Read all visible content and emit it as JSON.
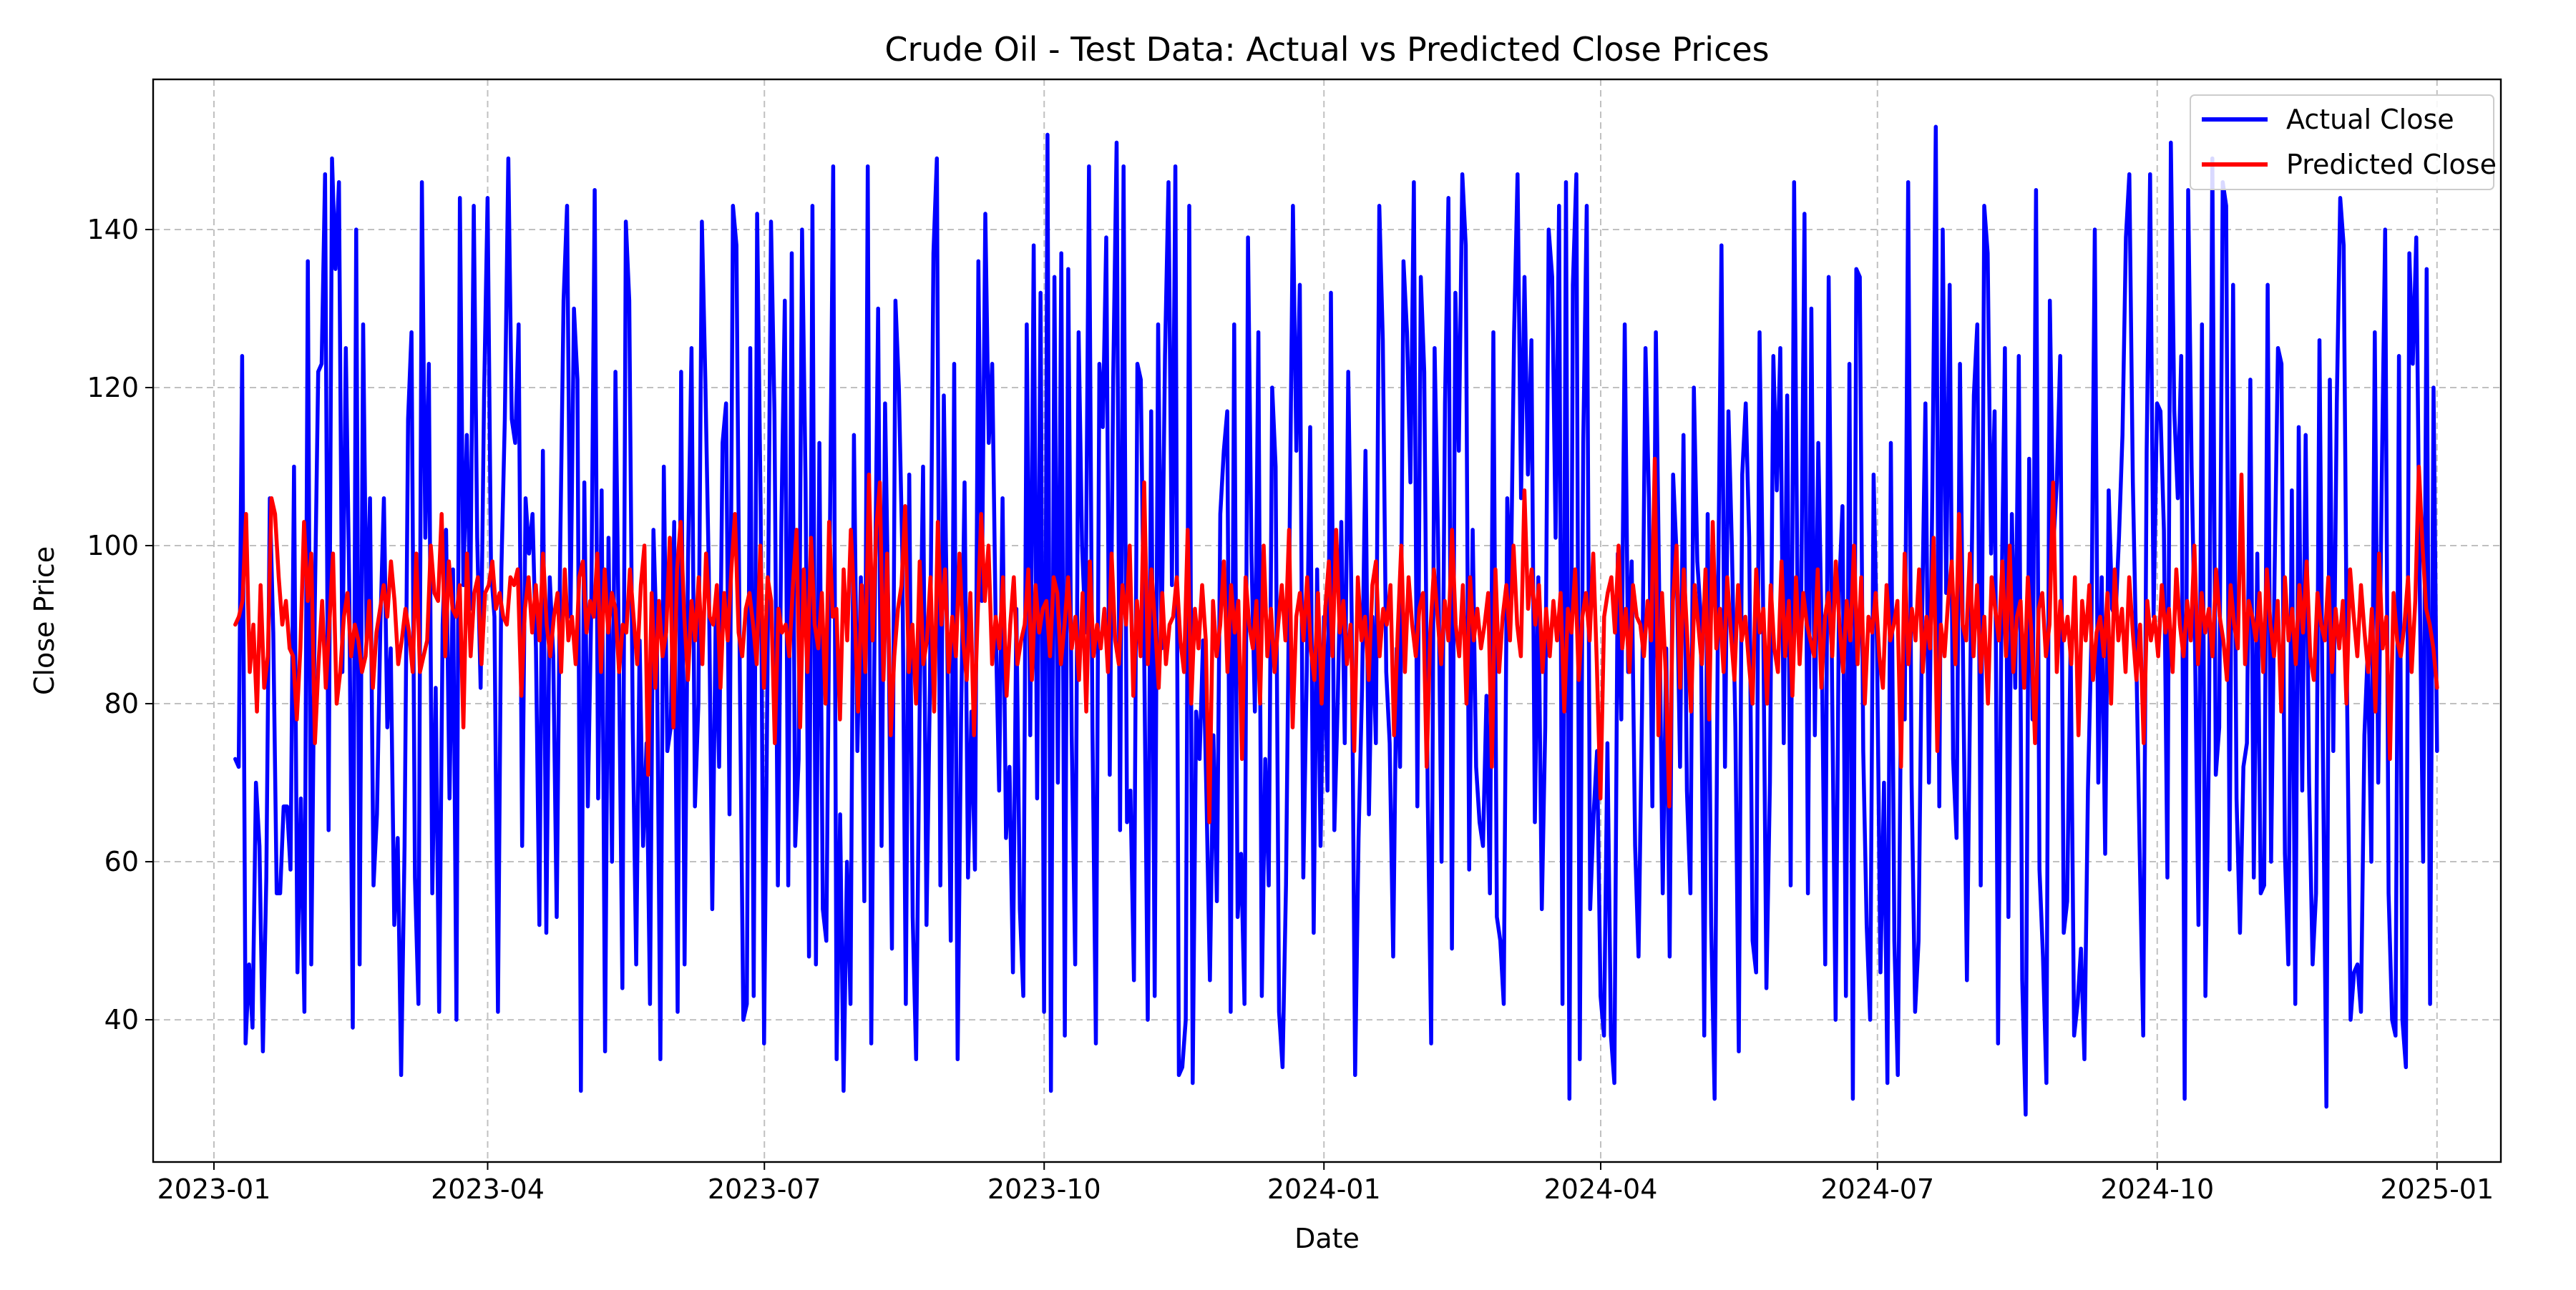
{
  "chart_data": {
    "type": "line",
    "title": "Crude Oil - Test Data: Actual vs Predicted Close Prices",
    "xlabel": "Date",
    "ylabel": "Close Price",
    "x_range": [
      "2022-12-12",
      "2025-01-22"
    ],
    "ylim": [
      22,
      159
    ],
    "x_ticks": [
      "2023-01",
      "2023-04",
      "2023-07",
      "2023-10",
      "2024-01",
      "2024-04",
      "2024-07",
      "2024-10",
      "2025-01"
    ],
    "x_tick_dates": [
      "2023-01-01",
      "2023-04-01",
      "2023-07-01",
      "2023-10-01",
      "2024-01-01",
      "2024-04-01",
      "2024-07-01",
      "2024-10-01",
      "2025-01-01"
    ],
    "y_ticks": [
      40,
      60,
      80,
      100,
      120,
      140
    ],
    "grid": true,
    "legend_position": "top-right",
    "x_start": "2023-01-08",
    "x_end": "2025-01-01",
    "series": [
      {
        "name": "Actual Close",
        "color": "#0000ff",
        "values": [
          73,
          72,
          124,
          37,
          47,
          39,
          70,
          62,
          36,
          58,
          106,
          89,
          56,
          56,
          67,
          67,
          59,
          110,
          46,
          68,
          41,
          136,
          47,
          92,
          122,
          123,
          147,
          64,
          149,
          135,
          146,
          84,
          125,
          94,
          39,
          140,
          47,
          128,
          88,
          106,
          57,
          66,
          90,
          106,
          77,
          87,
          52,
          63,
          33,
          62,
          116,
          127,
          58,
          42,
          146,
          101,
          123,
          56,
          82,
          41,
          90,
          102,
          68,
          97,
          40,
          144,
          95,
          114,
          92,
          143,
          101,
          82,
          119,
          144,
          97,
          91,
          41,
          97,
          116,
          149,
          116,
          113,
          128,
          62,
          106,
          99,
          104,
          87,
          52,
          112,
          51,
          96,
          86,
          53,
          99,
          131,
          143,
          91,
          130,
          121,
          31,
          108,
          67,
          92,
          145,
          68,
          107,
          36,
          101,
          60,
          122,
          87,
          44,
          141,
          131,
          77,
          47,
          88,
          62,
          75,
          42,
          102,
          87,
          35,
          110,
          74,
          77,
          103,
          41,
          122,
          47,
          98,
          125,
          67,
          80,
          141,
          121,
          97,
          54,
          91,
          72,
          113,
          118,
          66,
          143,
          138,
          83,
          40,
          42,
          125,
          43,
          142,
          105,
          37,
          84,
          141,
          117,
          57,
          103,
          131,
          57,
          137,
          62,
          73,
          140,
          108,
          48,
          143,
          47,
          113,
          54,
          50,
          99,
          148,
          35,
          66,
          31,
          60,
          42,
          114,
          74,
          96,
          55,
          148,
          37,
          91,
          130,
          62,
          118,
          90,
          49,
          131,
          120,
          99,
          42,
          109,
          53,
          35,
          79,
          110,
          52,
          83,
          137,
          149,
          57,
          119,
          88,
          50,
          123,
          35,
          78,
          108,
          58,
          79,
          59,
          136,
          93,
          142,
          113,
          123,
          90,
          69,
          106,
          63,
          72,
          46,
          92,
          54,
          43,
          128,
          76,
          138,
          68,
          132,
          41,
          152,
          31,
          134,
          70,
          137,
          38,
          135,
          76,
          47,
          127,
          100,
          89,
          148,
          77,
          37,
          123,
          115,
          139,
          71,
          121,
          151,
          64,
          148,
          65,
          69,
          45,
          123,
          121,
          85,
          40,
          117,
          43,
          128,
          87,
          124,
          146,
          95,
          148,
          33,
          34,
          40,
          143,
          32,
          79,
          73,
          88,
          68,
          45,
          76,
          55,
          104,
          112,
          117,
          41,
          128,
          53,
          61,
          42,
          139,
          99,
          79,
          127,
          43,
          73,
          57,
          120,
          110,
          41,
          34,
          57,
          99,
          143,
          112,
          133,
          58,
          84,
          115,
          51,
          97,
          62,
          91,
          69,
          132,
          64,
          81,
          103,
          75,
          122,
          91,
          33,
          63,
          82,
          112,
          66,
          91,
          75,
          143,
          126,
          84,
          75,
          48,
          87,
          72,
          136,
          127,
          108,
          146,
          67,
          134,
          122,
          68,
          37,
          125,
          101,
          60,
          118,
          144,
          49,
          132,
          112,
          147,
          138,
          59,
          102,
          72,
          65,
          62,
          81,
          56,
          127,
          53,
          50,
          42,
          106,
          93,
          127,
          147,
          106,
          134,
          109,
          126,
          65,
          96,
          54,
          77,
          140,
          134,
          101,
          143,
          42,
          146,
          30,
          133,
          147,
          35,
          113,
          143,
          54,
          66,
          74,
          43,
          38,
          75,
          38,
          32,
          99,
          78,
          128,
          84,
          98,
          62,
          48,
          79,
          125,
          106,
          67,
          127,
          93,
          56,
          87,
          48,
          109,
          99,
          72,
          114,
          69,
          56,
          120,
          98,
          91,
          38,
          104,
          52,
          30,
          93,
          138,
          72,
          117,
          100,
          77,
          36,
          109,
          118,
          101,
          50,
          46,
          127,
          94,
          44,
          70,
          124,
          107,
          125,
          75,
          119,
          57,
          146,
          93,
          90,
          142,
          56,
          130,
          76,
          113,
          88,
          47,
          134,
          82,
          40,
          94,
          105,
          43,
          123,
          30,
          135,
          134,
          74,
          52,
          40,
          109,
          87,
          46,
          70,
          32,
          113,
          50,
          33,
          84,
          78,
          146,
          70,
          41,
          50,
          90,
          118,
          70,
          107,
          153,
          67,
          140,
          94,
          133,
          73,
          63,
          123,
          80,
          45,
          84,
          119,
          128,
          57,
          143,
          137,
          99,
          117,
          37,
          92,
          125,
          53,
          104,
          82,
          124,
          45,
          28,
          111,
          78,
          145,
          59,
          48,
          32,
          131,
          100,
          108,
          124,
          51,
          55,
          88,
          38,
          42,
          49,
          35,
          69,
          88,
          140,
          70,
          96,
          61,
          107,
          92,
          91,
          101,
          114,
          139,
          147,
          108,
          86,
          61,
          38,
          112,
          147,
          91,
          118,
          117,
          102,
          58,
          151,
          117,
          106,
          124,
          30,
          145,
          110,
          87,
          52,
          128,
          43,
          74,
          149,
          71,
          77,
          146,
          143,
          59,
          133,
          68,
          51,
          72,
          75,
          121,
          58,
          99,
          56,
          57,
          133,
          60,
          96,
          125,
          123,
          61,
          47,
          107,
          42,
          115,
          69,
          114,
          70,
          47,
          56,
          126,
          74,
          29,
          121,
          74,
          118,
          144,
          138,
          80,
          40,
          46,
          47,
          41,
          76,
          87,
          60,
          127,
          70,
          108,
          140,
          56,
          40,
          38,
          124,
          40,
          34,
          137,
          123,
          139,
          95,
          60,
          135,
          42,
          120,
          74
        ]
      },
      {
        "name": "Predicted Close",
        "color": "#ff0000",
        "values": [
          90,
          91,
          93,
          104,
          84,
          90,
          79,
          95,
          82,
          86,
          106,
          104,
          96,
          90,
          93,
          87,
          86,
          78,
          87,
          103,
          93,
          99,
          75,
          85,
          93,
          82,
          90,
          99,
          80,
          84,
          91,
          94,
          86,
          90,
          88,
          84,
          86,
          93,
          82,
          89,
          92,
          95,
          91,
          98,
          93,
          85,
          88,
          92,
          89,
          84,
          99,
          84,
          86,
          88,
          100,
          94,
          93,
          104,
          86,
          98,
          92,
          91,
          95,
          77,
          99,
          86,
          94,
          96,
          85,
          94,
          95,
          98,
          92,
          94,
          91,
          90,
          96,
          95,
          97,
          81,
          92,
          96,
          89,
          95,
          88,
          99,
          90,
          86,
          91,
          94,
          84,
          97,
          88,
          91,
          85,
          96,
          98,
          89,
          93,
          91,
          99,
          84,
          97,
          89,
          94,
          92,
          84,
          90,
          89,
          97,
          91,
          85,
          95,
          100,
          71,
          94,
          82,
          93,
          86,
          89,
          101,
          77,
          97,
          103,
          91,
          83,
          93,
          88,
          96,
          85,
          99,
          91,
          90,
          95,
          82,
          94,
          88,
          97,
          104,
          89,
          86,
          92,
          94,
          90,
          85,
          100,
          82,
          96,
          93,
          75,
          92,
          89,
          90,
          86,
          95,
          102,
          77,
          97,
          84,
          101,
          90,
          87,
          94,
          80,
          103,
          91,
          92,
          78,
          97,
          88,
          102,
          92,
          79,
          95,
          84,
          109,
          88,
          102,
          108,
          83,
          99,
          76,
          86,
          92,
          95,
          105,
          84,
          90,
          80,
          98,
          85,
          88,
          96,
          79,
          103,
          90,
          97,
          84,
          91,
          86,
          99,
          88,
          83,
          94,
          76,
          91,
          104,
          93,
          100,
          85,
          91,
          87,
          96,
          81,
          90,
          96,
          85,
          88,
          90,
          97,
          83,
          95,
          89,
          92,
          93,
          86,
          96,
          94,
          85,
          90,
          96,
          87,
          91,
          83,
          94,
          79,
          98,
          86,
          90,
          87,
          92,
          84,
          99,
          88,
          85,
          95,
          90,
          100,
          81,
          93,
          86,
          108,
          85,
          97,
          90,
          82,
          94,
          85,
          90,
          91,
          96,
          88,
          84,
          102,
          80,
          92,
          87,
          95,
          88,
          65,
          93,
          86,
          90,
          98,
          84,
          95,
          89,
          93,
          73,
          96,
          90,
          87,
          93,
          80,
          100,
          86,
          92,
          84,
          90,
          95,
          88,
          102,
          77,
          91,
          94,
          88,
          96,
          87,
          83,
          94,
          80,
          92,
          98,
          86,
          102,
          89,
          93,
          85,
          90,
          74,
          96,
          88,
          91,
          83,
          95,
          98,
          86,
          92,
          90,
          95,
          76,
          89,
          100,
          84,
          96,
          90,
          86,
          92,
          94,
          72,
          89,
          97,
          91,
          85,
          93,
          88,
          102,
          90,
          86,
          95,
          80,
          96,
          88,
          92,
          87,
          90,
          94,
          72,
          97,
          84,
          91,
          95,
          88,
          100,
          90,
          86,
          107,
          92,
          97,
          90,
          95,
          84,
          92,
          86,
          93,
          88,
          94,
          79,
          92,
          89,
          97,
          83,
          91,
          94,
          88,
          99,
          85,
          68,
          91,
          94,
          96,
          89,
          100,
          87,
          92,
          84,
          95,
          91,
          90,
          86,
          93,
          88,
          111,
          76,
          94,
          84,
          67,
          93,
          100,
          82,
          97,
          88,
          79,
          95,
          90,
          85,
          97,
          78,
          103,
          87,
          92,
          84,
          96,
          89,
          83,
          95,
          88,
          91,
          85,
          80,
          97,
          89,
          92,
          80,
          95,
          87,
          84,
          98,
          86,
          93,
          81,
          96,
          85,
          94,
          90,
          88,
          86,
          97,
          82,
          91,
          94,
          86,
          98,
          90,
          84,
          93,
          88,
          100,
          85,
          96,
          80,
          91,
          89,
          94,
          86,
          82,
          95,
          88,
          90,
          93,
          72,
          99,
          85,
          92,
          88,
          97,
          84,
          91,
          87,
          101,
          74,
          90,
          86,
          93,
          98,
          85,
          104,
          90,
          88,
          99,
          86,
          95,
          84,
          91,
          80,
          96,
          92,
          88,
          98,
          86,
          100,
          84,
          91,
          93,
          82,
          96,
          89,
          75,
          92,
          94,
          86,
          90,
          108,
          84,
          93,
          88,
          91,
          85,
          96,
          76,
          93,
          88,
          95,
          83,
          89,
          91,
          86,
          94,
          80,
          97,
          88,
          92,
          84,
          96,
          89,
          83,
          90,
          75,
          93,
          88,
          91,
          86,
          95,
          89,
          92,
          84,
          97,
          90,
          86,
          93,
          88,
          100,
          85,
          94,
          89,
          92,
          86,
          97,
          91,
          88,
          83,
          95,
          90,
          87,
          109,
          85,
          93,
          91,
          88,
          94,
          84,
          97,
          90,
          86,
          93,
          79,
          96,
          88,
          92,
          85,
          95,
          89,
          98,
          86,
          83,
          94,
          90,
          88,
          96,
          84,
          92,
          87,
          93,
          80,
          97,
          91,
          86,
          95,
          89,
          84,
          92,
          79,
          99,
          87,
          91,
          73,
          94,
          88,
          86,
          90,
          96,
          84,
          93,
          110,
          100,
          92,
          90,
          87,
          82
        ]
      }
    ]
  }
}
